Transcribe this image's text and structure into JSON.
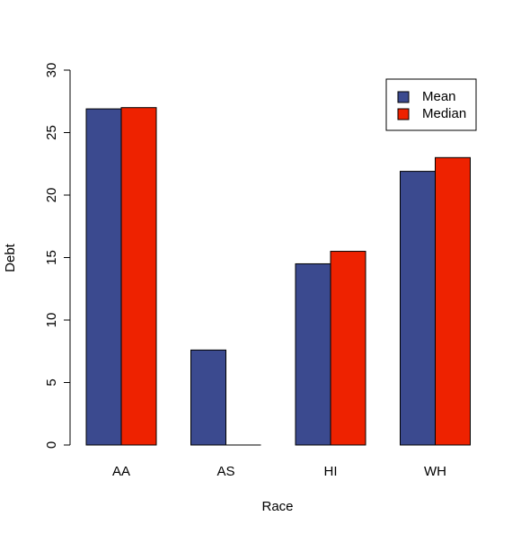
{
  "chart_data": {
    "type": "bar",
    "x_label": "Race",
    "y_label": "Debt",
    "categories": [
      "AA",
      "AS",
      "HI",
      "WH"
    ],
    "series": [
      {
        "name": "Mean",
        "color": "#3b4a8f",
        "values": [
          26.9,
          7.6,
          14.5,
          21.9
        ]
      },
      {
        "name": "Median",
        "color": "#ee2200",
        "values": [
          27.0,
          0,
          15.5,
          23.0
        ]
      }
    ],
    "ylim": [
      0,
      30
    ],
    "yticks": [
      0,
      5,
      10,
      15,
      20,
      25,
      30
    ],
    "grid": false,
    "legend": "topright"
  }
}
